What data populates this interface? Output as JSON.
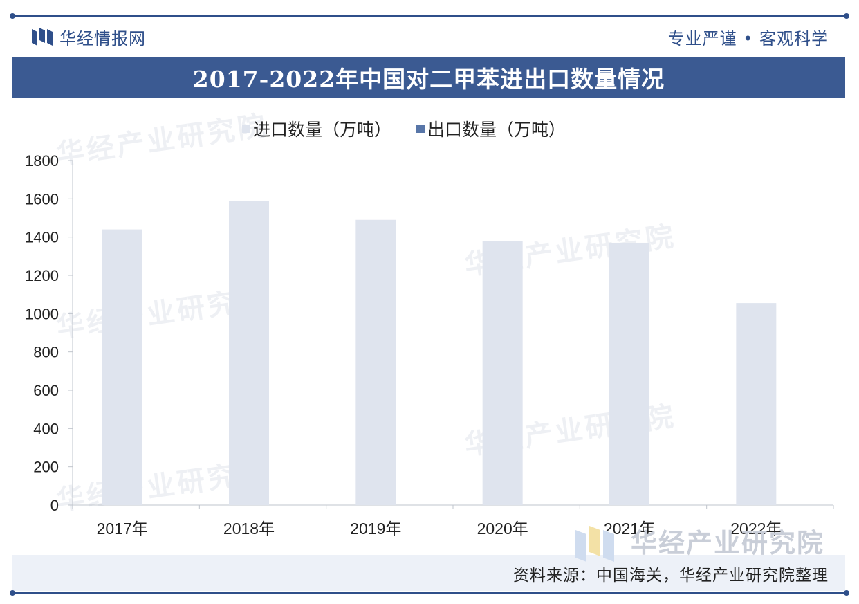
{
  "header": {
    "brand": "华经情报网",
    "slogan": "专业严谨 • 客观科学"
  },
  "title": "2017-2022年中国对二甲苯进出口数量情况",
  "watermark": "华经产业研究院",
  "footer": {
    "source": "资料来源：中国海关，华经产业研究院整理",
    "brand": "华经产业研究院"
  },
  "colors": {
    "import": "#dfe4ee",
    "export": "#5876a8",
    "accent": "#3b5a92"
  },
  "chart_data": {
    "type": "bar",
    "categories": [
      "2017年",
      "2018年",
      "2019年",
      "2020年",
      "2021年",
      "2022年"
    ],
    "series": [
      {
        "name": "进口数量（万吨）",
        "values": [
          1440,
          1590,
          1490,
          1380,
          1370,
          1055
        ]
      },
      {
        "name": "出口数量（万吨）",
        "values": [
          0,
          0,
          0,
          0,
          0,
          0
        ]
      }
    ],
    "ylim": [
      0,
      1800
    ],
    "yticks": [
      "0",
      "200",
      "400",
      "600",
      "800",
      "1000",
      "1200",
      "1400",
      "1600",
      "1800"
    ],
    "grid": false,
    "legend": "top-center"
  }
}
